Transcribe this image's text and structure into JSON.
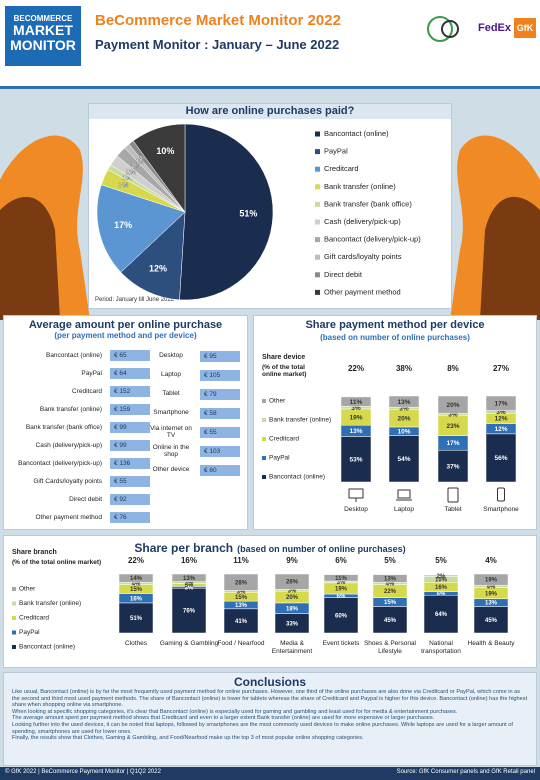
{
  "header": {
    "logo": [
      "BECOMMERCE",
      "MARKET",
      "MONITOR"
    ],
    "title": "BeCommerce Market Monitor 2022",
    "subtitle": "Payment Monitor : January – June 2022",
    "partners": [
      "FedEx",
      "GfK"
    ]
  },
  "chart_data": [
    {
      "type": "pie",
      "title": "How are online purchases paid?",
      "note": "Period: January till June 2022",
      "categories": [
        "Bancontact (online)",
        "PayPal",
        "Creditcard",
        "Bank transfer (online)",
        "Bank transfer (bank office)",
        "Cash (delivery/pick-up)",
        "Bancontact (delivery/pick-up)",
        "Gift cards/loyalty points",
        "Direct debit",
        "Other payment method"
      ],
      "values": [
        51,
        12,
        17,
        3,
        1,
        2,
        2,
        1,
        1,
        10
      ],
      "value_labels": [
        "51%",
        "12%",
        "17%",
        "3%",
        "1%",
        "2%",
        "2%",
        "1%",
        "1%",
        "10%"
      ],
      "colors": [
        "#1b2d4f",
        "#2d4f7e",
        "#5b96d2",
        "#d7d94c",
        "#c9dca0",
        "#cfcfcf",
        "#a7a7a7",
        "#bdbdbd",
        "#8a8a8a",
        "#3b3b3b"
      ]
    },
    {
      "type": "stacked_bar",
      "title": "Share payment method per device",
      "subtitle": "(based on number of online purchases)",
      "legend_title": "Share device",
      "legend_subtitle": "(% of the total online market)",
      "categories": [
        "Desktop",
        "Laptop",
        "Tablet",
        "Smartphone"
      ],
      "shares": [
        22,
        38,
        8,
        27
      ],
      "share_labels": [
        "22%",
        "38%",
        "8%",
        "27%"
      ],
      "ylim": [
        0,
        100
      ],
      "series": [
        {
          "name": "Bancontact (online)",
          "color": "#1b2d4f",
          "values": [
            53,
            54,
            37,
            56
          ],
          "value_labels": [
            "53%",
            "54%",
            "37%",
            "56%"
          ]
        },
        {
          "name": "PayPal",
          "color": "#2f6fb5",
          "values": [
            13,
            10,
            17,
            12
          ],
          "value_labels": [
            "13%",
            "10%",
            "17%",
            "12%"
          ]
        },
        {
          "name": "Creditcard",
          "color": "#d7d94c",
          "values": [
            19,
            20,
            23,
            12
          ],
          "value_labels": [
            "19%",
            "20%",
            "23%",
            "12%"
          ]
        },
        {
          "name": "Bank transfer (online)",
          "color": "#c9dca0",
          "values": [
            3,
            3,
            3,
            3
          ],
          "value_labels": [
            "3%",
            "3%",
            "3%",
            "3%"
          ]
        },
        {
          "name": "Other",
          "color": "#a6a6a6",
          "values": [
            11,
            13,
            20,
            17
          ],
          "value_labels": [
            "11%",
            "13%",
            "20%",
            "17%"
          ]
        }
      ]
    },
    {
      "type": "stacked_bar",
      "title": "Share per branch",
      "subtitle": "(based on number of online purchases)",
      "legend_title": "Share branch",
      "legend_subtitle": "(% of the total online market)",
      "categories": [
        "Clothes",
        "Gaming & Gambling",
        "Food / Nearfood",
        "Media & Entertainment",
        "Event tickets",
        "Shoes & Personal Lifestyle",
        "National transportation",
        "Health & Beauty"
      ],
      "shares": [
        22,
        16,
        11,
        9,
        6,
        5,
        5,
        4
      ],
      "share_labels": [
        "22%",
        "16%",
        "11%",
        "9%",
        "6%",
        "5%",
        "5%",
        "4%"
      ],
      "ylim": [
        0,
        100
      ],
      "series": [
        {
          "name": "Bancontact (online)",
          "color": "#1b2d4f",
          "values": [
            51,
            76,
            41,
            33,
            60,
            45,
            64,
            45
          ],
          "value_labels": [
            "51%",
            "76%",
            "41%",
            "33%",
            "60%",
            "45%",
            "64%",
            "45%"
          ]
        },
        {
          "name": "PayPal",
          "color": "#2f6fb5",
          "values": [
            16,
            3,
            13,
            18,
            6,
            15,
            6,
            13
          ],
          "value_labels": [
            "16%",
            "3%",
            "13%",
            "18%",
            "6%",
            "15%",
            "6%",
            "13%"
          ]
        },
        {
          "name": "Creditcard",
          "color": "#d7d94c",
          "values": [
            15,
            5,
            15,
            20,
            19,
            22,
            16,
            19
          ],
          "value_labels": [
            "15%",
            "5%",
            "15%",
            "20%",
            "19%",
            "22%",
            "16%",
            "19%"
          ]
        },
        {
          "name": "Bank transfer (online)",
          "color": "#c9dca0",
          "values": [
            4,
            3,
            3,
            3,
            3,
            4,
            10,
            4
          ],
          "value_labels": [
            "4%",
            "3%",
            "3%",
            "3%",
            "3%",
            "4%",
            "10%",
            "4%"
          ]
        },
        {
          "name": "Other",
          "color": "#a6a6a6",
          "values": [
            14,
            13,
            28,
            26,
            11,
            13,
            2,
            19
          ],
          "value_labels": [
            "14%",
            "13%",
            "28%",
            "26%",
            "11%",
            "13%",
            "2%",
            "19%"
          ]
        }
      ]
    }
  ],
  "amounts": {
    "title": "Average amount per online purchase",
    "subtitle": "(per payment method and per device)",
    "payment": [
      {
        "label": "Bancontact (online)",
        "amount": "€ 65"
      },
      {
        "label": "PayPal",
        "amount": "€ 64"
      },
      {
        "label": "Creditcard",
        "amount": "€ 152"
      },
      {
        "label": "Bank transfer (online)",
        "amount": "€ 159"
      },
      {
        "label": "Bank transfer (bank office)",
        "amount": "€ 99"
      },
      {
        "label": "Cash (delivery/pick-up)",
        "amount": "€ 99"
      },
      {
        "label": "Bancontact (delivery/pick-up)",
        "amount": "€ 136"
      },
      {
        "label": "Gift Cards/loyalty points",
        "amount": "€ 55"
      },
      {
        "label": "Direct debit",
        "amount": "€ 92"
      },
      {
        "label": "Other payment method",
        "amount": "€ 76"
      }
    ],
    "device": [
      {
        "label": "Desktop",
        "amount": "€ 95"
      },
      {
        "label": "Laptop",
        "amount": "€ 105"
      },
      {
        "label": "Tablet",
        "amount": "€ 79"
      },
      {
        "label": "Smartphone",
        "amount": "€ 58"
      },
      {
        "label": "Via internet on TV",
        "amount": "€ 55"
      },
      {
        "label": "Online in the shop",
        "amount": "€ 103"
      },
      {
        "label": "Other device",
        "amount": "€ 60"
      }
    ]
  },
  "conclusions": {
    "title": "Conclusions",
    "paragraphs": [
      "Like usual, Bancontact (online) is by far the most frequently used payment method for online purchases. However, one third of the online purchases are also done via Creditcard or PayPal, which come in as the second and third most used payment methods. The share of Bancontact (online) is lower for tablets whereas the share of Creditcard and Paypal is higher for this device. Bancontact (online) has the highest share when shopping online via smartphone.",
      "When looking at specific shopping categories, it's clear that Bancontact (online) is especially used for gaming and gambling and least used for for media & entertainment purchases.",
      "The average amount spent per payment method shows that Creditcard and even to a larger extent Bank transfer (online) are used for more expensive or larger purchases.",
      "Looking further into the used devices, it can be noted that laptops, followed by smartphones are the most commonly used devices to make online purchases. While laptops are used for a larger amount of spending, smartphones are used for lower ones.",
      "Finally, the results show that Clothes, Gaming & Gambling, and Food/Nearfood make up the top 3 of most popular online shopping categories."
    ]
  },
  "footer": {
    "left": "© GfK 2022 | BeCommerce Payment Monitor | Q1Q2 2022",
    "right": "Source: GfK Consumer panels and GfK Retail panel"
  }
}
